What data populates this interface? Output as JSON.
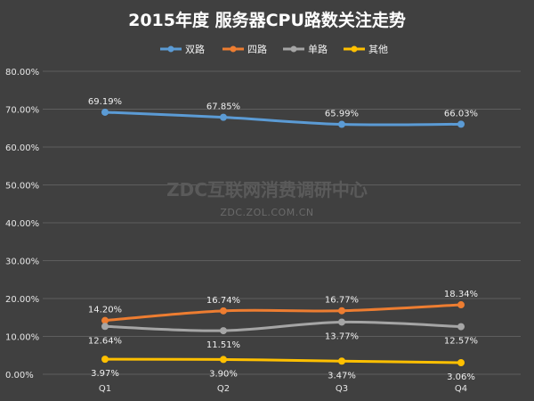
{
  "chart_data": {
    "type": "line",
    "title": "2015年度 服务器CPU路数关注走势",
    "categories": [
      "Q1",
      "Q2",
      "Q3",
      "Q4"
    ],
    "ylim": [
      0,
      80
    ],
    "y_ticks": [
      0,
      10,
      20,
      30,
      40,
      50,
      60,
      70,
      80
    ],
    "y_tick_format": "percent_2dp",
    "grid": true,
    "legend_position": "top",
    "series": [
      {
        "name": "双路",
        "color": "#5b9bd5",
        "values": [
          69.19,
          67.85,
          65.99,
          66.03
        ],
        "labels": [
          "69.19%",
          "67.85%",
          "65.99%",
          "66.03%"
        ],
        "label_position": "above"
      },
      {
        "name": "四路",
        "color": "#ed7d31",
        "values": [
          14.2,
          16.74,
          16.77,
          18.34
        ],
        "labels": [
          "14.20%",
          "16.74%",
          "16.77%",
          "18.34%"
        ],
        "label_position": "above"
      },
      {
        "name": "单路",
        "color": "#a5a5a5",
        "values": [
          12.64,
          11.51,
          13.77,
          12.57
        ],
        "labels": [
          "12.64%",
          "11.51%",
          "13.77%",
          "12.57%"
        ],
        "label_position": "below"
      },
      {
        "name": "其他",
        "color": "#ffc000",
        "values": [
          3.97,
          3.9,
          3.47,
          3.06
        ],
        "labels": [
          "3.97%",
          "3.90%",
          "3.47%",
          "3.06%"
        ],
        "label_position": "below"
      }
    ],
    "watermark": {
      "line1": "ZDC互联网消费调研中心",
      "line2": "ZDC.ZOL.COM.CN"
    }
  }
}
